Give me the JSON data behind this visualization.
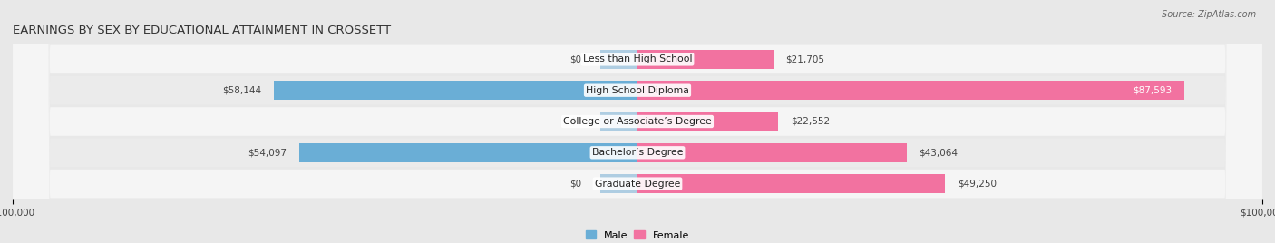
{
  "title": "EARNINGS BY SEX BY EDUCATIONAL ATTAINMENT IN CROSSETT",
  "source": "Source: ZipAtlas.com",
  "categories": [
    "Less than High School",
    "High School Diploma",
    "College or Associate’s Degree",
    "Bachelor’s Degree",
    "Graduate Degree"
  ],
  "male_values": [
    0,
    58144,
    0,
    54097,
    0
  ],
  "female_values": [
    21705,
    87593,
    22552,
    43064,
    49250
  ],
  "male_color": "#6aaed6",
  "female_color": "#f272a0",
  "male_light_color": "#aecde2",
  "female_light_color": "#f5b8ce",
  "xlim": 100000,
  "bar_height": 0.62,
  "background_color": "#e8e8e8",
  "row_color_odd": "#f5f5f5",
  "row_color_even": "#ebebeb",
  "title_fontsize": 9.5,
  "label_fontsize": 7.8,
  "tick_fontsize": 7.5,
  "legend_fontsize": 8,
  "source_fontsize": 7
}
